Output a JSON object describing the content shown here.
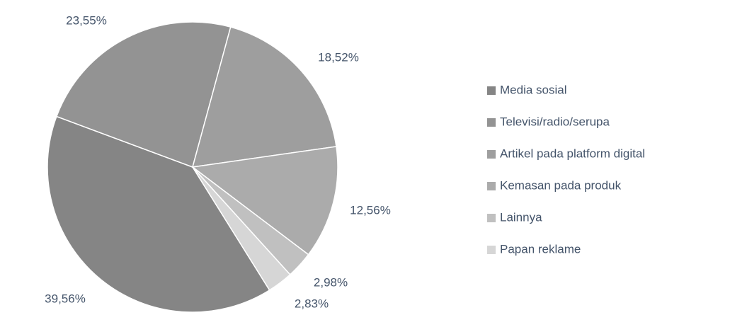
{
  "chart_data": {
    "type": "pie",
    "categories": [
      "Media sosial",
      "Televisi/radio/serupa",
      "Artikel pada platform digital",
      "Kemasan pada produk",
      "Lainnya",
      "Papan reklame"
    ],
    "values": [
      39.56,
      23.55,
      18.52,
      12.56,
      2.98,
      2.83
    ],
    "value_labels": [
      "39,56%",
      "23,55%",
      "18,52%",
      "12,56%",
      "2,98%",
      "2,83%"
    ],
    "colors": [
      "#858585",
      "#939393",
      "#9e9e9e",
      "#ababab",
      "#c0c0c0",
      "#d6d6d6"
    ],
    "legend": "right"
  }
}
